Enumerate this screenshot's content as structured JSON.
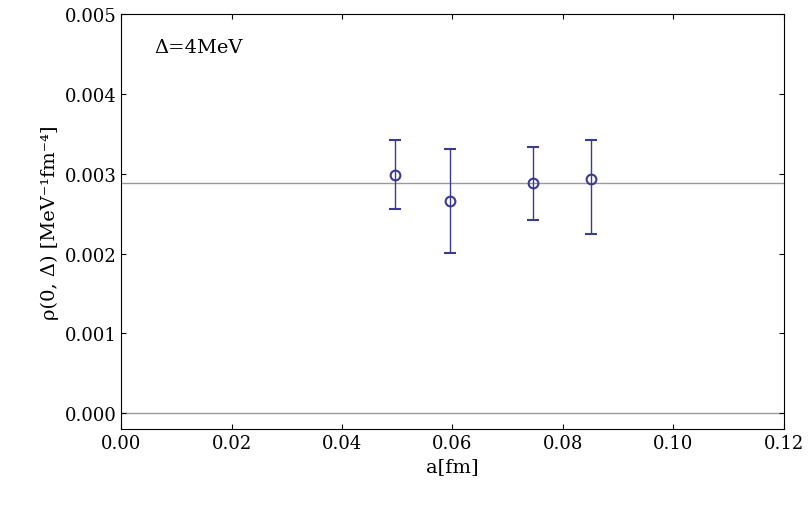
{
  "chart_data": {
    "type": "scatter",
    "x_label": "a[fm]",
    "y_label": "ρ(0, Δ) [MeV⁻¹fm⁻⁴]",
    "annotation": "Δ=4MeV",
    "x": [
      0.0495,
      0.0595,
      0.0745,
      0.085
    ],
    "values": [
      0.00299,
      0.00266,
      0.00288,
      0.00294
    ],
    "error_low": [
      0.00043,
      0.00065,
      0.00046,
      0.00069
    ],
    "error_high": [
      0.00043,
      0.00065,
      0.00045,
      0.00048
    ],
    "hlines": [
      0.00289,
      0.0
    ],
    "color": "#3b3b94",
    "marker": "circle",
    "xlim": [
      0.0,
      0.12
    ],
    "ylim": [
      -0.0002,
      0.005
    ],
    "xticks": [
      {
        "value": 0.0,
        "label": "0.00"
      },
      {
        "value": 0.02,
        "label": "0.02"
      },
      {
        "value": 0.04,
        "label": "0.04"
      },
      {
        "value": 0.06,
        "label": "0.06"
      },
      {
        "value": 0.08,
        "label": "0.08"
      },
      {
        "value": 0.1,
        "label": "0.10"
      },
      {
        "value": 0.12,
        "label": "0.12"
      }
    ],
    "yticks": [
      {
        "value": 0.0,
        "label": "0.000"
      },
      {
        "value": 0.001,
        "label": "0.001"
      },
      {
        "value": 0.002,
        "label": "0.002"
      },
      {
        "value": 0.003,
        "label": "0.003"
      },
      {
        "value": 0.004,
        "label": "0.004"
      },
      {
        "value": 0.005,
        "label": "0.005"
      }
    ],
    "grid": false
  }
}
